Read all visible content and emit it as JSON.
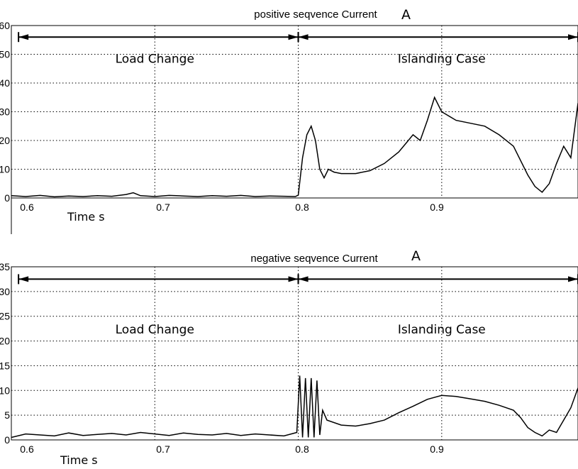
{
  "chart_data": [
    {
      "type": "line",
      "title": "positive seqvence Current",
      "unit": "A",
      "xlabel": "Time s",
      "ylabel": "",
      "xlim": [
        0.6,
        0.995
      ],
      "ylim": [
        0,
        60
      ],
      "xticks": [
        0.6,
        0.7,
        0.8,
        0.9
      ],
      "yticks": [
        0,
        10,
        20,
        30,
        40,
        50,
        60
      ],
      "grid": true,
      "annotations": [
        {
          "text": "Load Change",
          "x": 0.7,
          "y": 47
        },
        {
          "text": "Islanding Case",
          "x": 0.9,
          "y": 47
        }
      ],
      "arrows": [
        {
          "from": 0.605,
          "to": 0.8,
          "y": 56
        },
        {
          "from": 0.8,
          "to": 0.995,
          "y": 56
        }
      ],
      "series": [
        {
          "x": [
            0.6,
            0.61,
            0.62,
            0.63,
            0.64,
            0.65,
            0.66,
            0.67,
            0.68,
            0.685,
            0.69,
            0.7,
            0.71,
            0.72,
            0.73,
            0.74,
            0.75,
            0.76,
            0.77,
            0.78,
            0.79,
            0.798,
            0.8,
            0.803,
            0.806,
            0.809,
            0.812,
            0.815,
            0.818,
            0.821,
            0.825,
            0.83,
            0.84,
            0.85,
            0.86,
            0.87,
            0.875,
            0.88,
            0.885,
            0.89,
            0.895,
            0.9,
            0.91,
            0.92,
            0.93,
            0.94,
            0.95,
            0.96,
            0.965,
            0.97,
            0.975,
            0.98,
            0.985,
            0.99,
            0.995
          ],
          "y": [
            0.8,
            0.5,
            0.9,
            0.4,
            0.7,
            0.5,
            0.8,
            0.6,
            1.2,
            1.8,
            0.8,
            0.5,
            0.9,
            0.7,
            0.5,
            0.8,
            0.6,
            0.9,
            0.5,
            0.7,
            0.6,
            0.5,
            1,
            14,
            22,
            25,
            20,
            10,
            7,
            10,
            9,
            8.5,
            8.5,
            9.5,
            12,
            16,
            19,
            22,
            20,
            27,
            35,
            30,
            27,
            26,
            25,
            22,
            18,
            8,
            4,
            2,
            5,
            12,
            18,
            14,
            33
          ]
        }
      ]
    },
    {
      "type": "line",
      "title": "negative seqvence Current",
      "unit": "A",
      "xlabel": "Time s",
      "ylabel": "",
      "xlim": [
        0.6,
        0.995
      ],
      "ylim": [
        0,
        35
      ],
      "xticks": [
        0.6,
        0.7,
        0.8,
        0.9
      ],
      "yticks": [
        0,
        5,
        10,
        15,
        20,
        25,
        30,
        35
      ],
      "grid": true,
      "annotations": [
        {
          "text": "Load Change",
          "x": 0.7,
          "y": 21.5
        },
        {
          "text": "Islanding Case",
          "x": 0.9,
          "y": 21.5
        }
      ],
      "arrows": [
        {
          "from": 0.605,
          "to": 0.8,
          "y": 32.5
        },
        {
          "from": 0.8,
          "to": 0.995,
          "y": 32.5
        }
      ],
      "series": [
        {
          "x": [
            0.6,
            0.61,
            0.62,
            0.63,
            0.64,
            0.65,
            0.66,
            0.67,
            0.68,
            0.69,
            0.7,
            0.71,
            0.72,
            0.73,
            0.74,
            0.75,
            0.76,
            0.77,
            0.78,
            0.79,
            0.799,
            0.801,
            0.803,
            0.805,
            0.807,
            0.809,
            0.811,
            0.813,
            0.815,
            0.817,
            0.82,
            0.83,
            0.84,
            0.85,
            0.86,
            0.87,
            0.88,
            0.89,
            0.9,
            0.91,
            0.92,
            0.93,
            0.94,
            0.95,
            0.955,
            0.96,
            0.965,
            0.97,
            0.975,
            0.98,
            0.985,
            0.99,
            0.995
          ],
          "y": [
            0.5,
            1.2,
            1.0,
            0.8,
            1.4,
            0.9,
            1.1,
            1.3,
            1.0,
            1.5,
            1.2,
            0.9,
            1.4,
            1.1,
            1.0,
            1.3,
            0.9,
            1.2,
            1.0,
            0.8,
            1.5,
            13,
            0.5,
            12.5,
            0.5,
            12.5,
            0.5,
            12,
            1,
            6,
            4,
            3,
            2.8,
            3.3,
            4,
            5.5,
            6.8,
            8.2,
            9,
            8.8,
            8.3,
            7.8,
            7,
            6,
            4.5,
            2.5,
            1.5,
            0.8,
            2,
            1.5,
            4,
            6.5,
            10.5
          ]
        }
      ]
    }
  ]
}
